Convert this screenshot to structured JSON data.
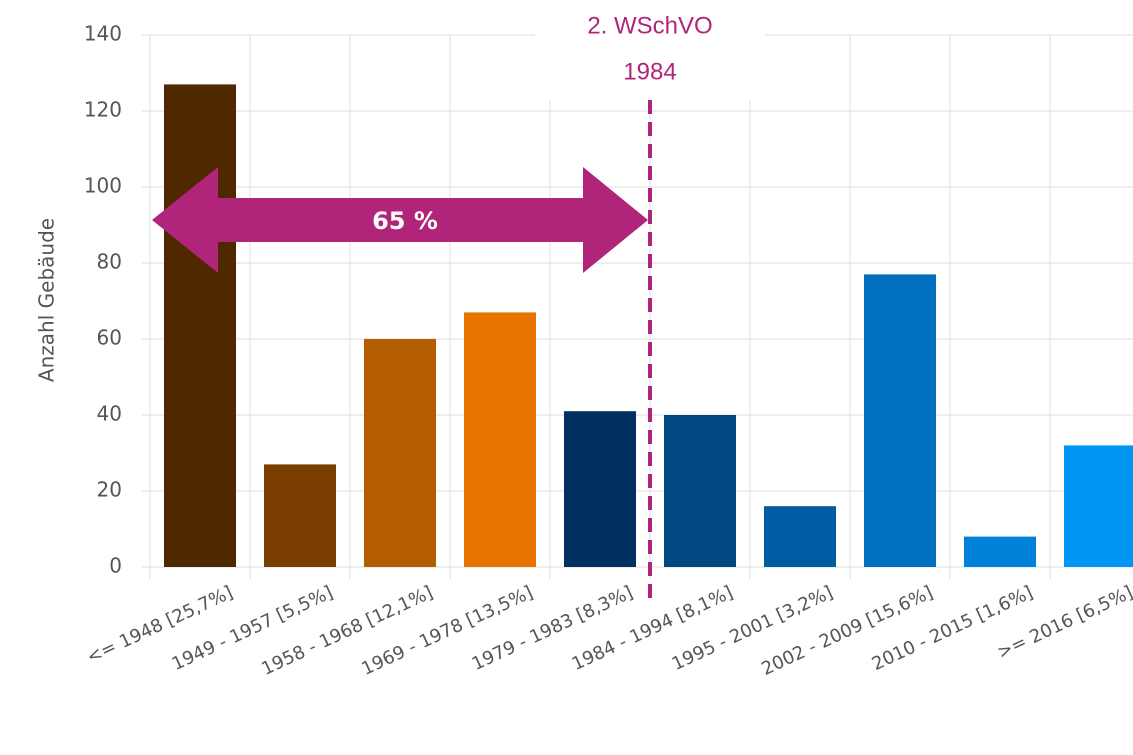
{
  "chart_data": {
    "type": "bar",
    "y_label": "Anzahl Gebäude",
    "categories": [
      "<= 1948 [25,7%]",
      "1949 - 1957 [5,5%]",
      "1958 - 1968 [12,1%]",
      "1969 - 1978 [13,5%]",
      "1979 - 1983 [8,3%]",
      "1984 - 1994 [8,1%]",
      "1995 - 2001 [3,2%]",
      "2002 - 2009 [15,6%]",
      "2010 - 2015 [1,6%]",
      ">= 2016 [6,5%]"
    ],
    "values": [
      127,
      27,
      60,
      67,
      41,
      40,
      16,
      77,
      8,
      32
    ],
    "colors": [
      "#4f2800",
      "#7a3f00",
      "#b35c00",
      "#e87400",
      "#00305f",
      "#00487f",
      "#005ca2",
      "#006fc0",
      "#0082da",
      "#0096f2"
    ],
    "ylim": [
      0,
      140
    ],
    "yticks": [
      0,
      20,
      40,
      60,
      80,
      100,
      120,
      140
    ],
    "grid": true,
    "annotations": [
      "2. WSchVO",
      "1984",
      "65 %"
    ]
  }
}
